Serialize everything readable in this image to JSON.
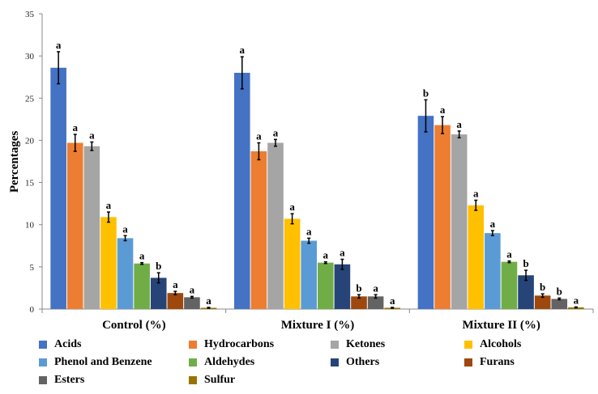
{
  "chart_data": {
    "type": "bar",
    "title": "",
    "xlabel": "",
    "ylabel": "Percentages",
    "ylim": [
      0,
      35
    ],
    "yticks": [
      "0",
      "5",
      "10",
      "15",
      "20",
      "25",
      "30",
      "35"
    ],
    "grid": false,
    "legend_position": "bottom",
    "categories": [
      "Control (%)",
      "Mixture I (%)",
      "Mixture II  (%)"
    ],
    "series": [
      {
        "name": "Acids",
        "color": "#4472C4",
        "values": [
          28.6,
          28.0,
          22.9
        ],
        "errors": [
          1.9,
          1.9,
          1.9
        ],
        "letters": [
          "a",
          "a",
          "b"
        ]
      },
      {
        "name": "Hydrocarbons",
        "color": "#ED7D31",
        "values": [
          19.7,
          18.7,
          21.8
        ],
        "errors": [
          1.0,
          1.0,
          1.0
        ],
        "letters": [
          "a",
          "a",
          "a"
        ]
      },
      {
        "name": "Ketones",
        "color": "#A5A5A5",
        "values": [
          19.3,
          19.7,
          20.7
        ],
        "errors": [
          0.5,
          0.4,
          0.4
        ],
        "letters": [
          "a",
          "a",
          "a"
        ]
      },
      {
        "name": "Alcohols",
        "color": "#FFC000",
        "values": [
          10.9,
          10.7,
          12.3
        ],
        "errors": [
          0.6,
          0.6,
          0.6
        ],
        "letters": [
          "a",
          "a",
          "a"
        ]
      },
      {
        "name": "Phenol and Benzene",
        "color": "#5B9BD5",
        "values": [
          8.4,
          8.1,
          9.0
        ],
        "errors": [
          0.3,
          0.3,
          0.3
        ],
        "letters": [
          "a",
          "a",
          "a"
        ]
      },
      {
        "name": "Aldehydes",
        "color": "#70AD47",
        "values": [
          5.4,
          5.5,
          5.6
        ],
        "errors": [
          0.1,
          0.1,
          0.1
        ],
        "letters": [
          "a",
          "a",
          "a"
        ]
      },
      {
        "name": "Others",
        "color": "#264478",
        "values": [
          3.7,
          5.3,
          4.0
        ],
        "errors": [
          0.6,
          0.6,
          0.6
        ],
        "letters": [
          "b",
          "a",
          "b"
        ]
      },
      {
        "name": "Furans",
        "color": "#9E480E",
        "values": [
          1.9,
          1.5,
          1.6
        ],
        "errors": [
          0.2,
          0.2,
          0.2
        ],
        "letters": [
          "a",
          "b",
          "b"
        ]
      },
      {
        "name": "Esters",
        "color": "#636363",
        "values": [
          1.4,
          1.5,
          1.2
        ],
        "errors": [
          0.1,
          0.2,
          0.1
        ],
        "letters": [
          "a",
          "a",
          "b"
        ]
      },
      {
        "name": "Sulfur",
        "color": "#997300",
        "values": [
          0.15,
          0.15,
          0.2
        ],
        "errors": [
          0.05,
          0.05,
          0.05
        ],
        "letters": [
          "a",
          "a",
          "a"
        ]
      }
    ]
  }
}
